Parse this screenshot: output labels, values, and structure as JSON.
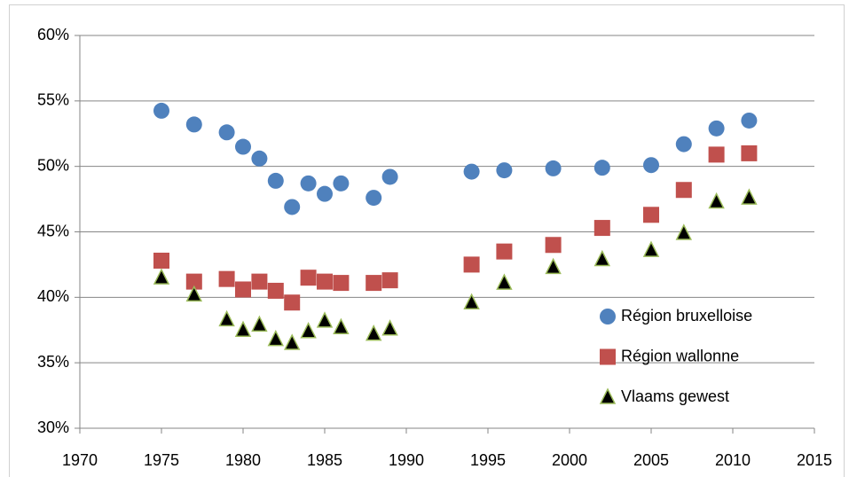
{
  "chart_data": {
    "type": "scatter",
    "x": [
      1975,
      1977,
      1979,
      1980,
      1981,
      1982,
      1983,
      1984,
      1985,
      1986,
      1988,
      1989,
      1994,
      1996,
      1999,
      2002,
      2005,
      2007,
      2009,
      2011
    ],
    "series": [
      {
        "name": "Région bruxelloise",
        "color": "#4f81bd",
        "marker": "circle",
        "values": [
          54.25,
          53.2,
          52.6,
          51.5,
          50.6,
          48.9,
          46.9,
          48.7,
          47.9,
          48.7,
          47.6,
          49.2,
          49.6,
          49.7,
          49.85,
          49.9,
          50.1,
          51.7,
          52.9,
          53.5
        ]
      },
      {
        "name": "Région wallonne",
        "color": "#c0504d",
        "marker": "square",
        "values": [
          42.8,
          41.2,
          41.4,
          40.6,
          41.2,
          40.5,
          39.6,
          41.5,
          41.2,
          41.1,
          41.1,
          41.3,
          42.5,
          43.5,
          44.0,
          45.3,
          46.3,
          48.2,
          50.9,
          51.0
        ]
      },
      {
        "name": "Vlaams gewest",
        "color": "#000000",
        "edgecolor": "#9bbb59",
        "marker": "triangle",
        "values": [
          41.5,
          40.2,
          38.3,
          37.5,
          37.9,
          36.8,
          36.5,
          37.4,
          38.2,
          37.7,
          37.2,
          37.6,
          39.6,
          41.1,
          42.3,
          42.9,
          43.6,
          44.9,
          47.3,
          47.6
        ]
      }
    ],
    "xlim": [
      1970,
      2015
    ],
    "xticks": [
      1970,
      1975,
      1980,
      1985,
      1990,
      1995,
      2000,
      2005,
      2010,
      2015
    ],
    "ylim": [
      30,
      60
    ],
    "yticks": [
      {
        "value": 30,
        "label": "30%"
      },
      {
        "value": 35,
        "label": "35%"
      },
      {
        "value": 40,
        "label": "40%"
      },
      {
        "value": 45,
        "label": "45%"
      },
      {
        "value": 50,
        "label": "50%"
      },
      {
        "value": 55,
        "label": "55%"
      },
      {
        "value": 60,
        "label": "60%"
      }
    ],
    "grid": true,
    "legend": "right"
  }
}
